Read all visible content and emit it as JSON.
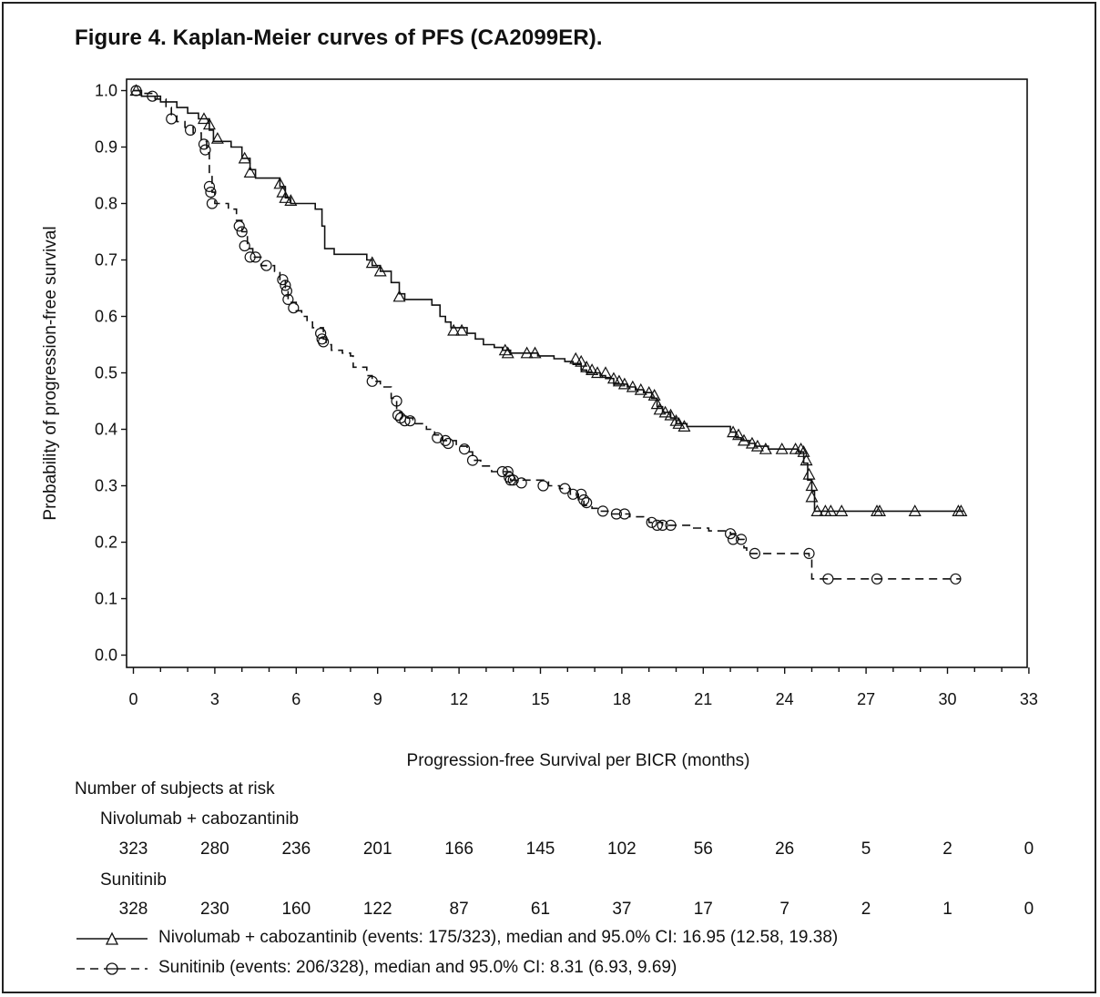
{
  "chart_data": {
    "type": "line",
    "title": "Figure 4. Kaplan-Meier curves of PFS (CA2099ER).",
    "xlabel": "Progression-free Survival per BICR (months)",
    "ylabel": "Probability of progression-free survival",
    "xlim": [
      0,
      33
    ],
    "ylim": [
      0,
      1
    ],
    "xticks": [
      0,
      3,
      6,
      9,
      12,
      15,
      18,
      21,
      24,
      27,
      30,
      33
    ],
    "yticks": [
      "0.0",
      "0.1",
      "0.2",
      "0.3",
      "0.4",
      "0.5",
      "0.6",
      "0.7",
      "0.8",
      "0.9",
      "1.0"
    ],
    "series": [
      {
        "name": "Nivolumab + cabozantinib",
        "style": "solid",
        "marker": "triangle",
        "steps": [
          [
            0,
            1.0
          ],
          [
            0.3,
            0.99
          ],
          [
            1.0,
            0.98
          ],
          [
            1.6,
            0.97
          ],
          [
            2.0,
            0.96
          ],
          [
            2.4,
            0.95
          ],
          [
            2.8,
            0.93
          ],
          [
            2.95,
            0.91
          ],
          [
            3.6,
            0.9
          ],
          [
            4.0,
            0.88
          ],
          [
            4.3,
            0.86
          ],
          [
            4.5,
            0.845
          ],
          [
            5.4,
            0.83
          ],
          [
            5.6,
            0.81
          ],
          [
            5.8,
            0.8
          ],
          [
            6.7,
            0.79
          ],
          [
            6.95,
            0.76
          ],
          [
            7.05,
            0.72
          ],
          [
            7.4,
            0.71
          ],
          [
            8.6,
            0.7
          ],
          [
            8.8,
            0.69
          ],
          [
            9.1,
            0.68
          ],
          [
            9.5,
            0.66
          ],
          [
            9.8,
            0.64
          ],
          [
            10.0,
            0.63
          ],
          [
            10.6,
            0.63
          ],
          [
            11.0,
            0.62
          ],
          [
            11.3,
            0.6
          ],
          [
            11.5,
            0.59
          ],
          [
            11.7,
            0.58
          ],
          [
            12.3,
            0.57
          ],
          [
            12.6,
            0.56
          ],
          [
            12.9,
            0.55
          ],
          [
            13.3,
            0.545
          ],
          [
            13.6,
            0.54
          ],
          [
            13.9,
            0.535
          ],
          [
            14.9,
            0.53
          ],
          [
            15.5,
            0.525
          ],
          [
            15.9,
            0.52
          ],
          [
            16.2,
            0.515
          ],
          [
            16.5,
            0.505
          ],
          [
            16.7,
            0.5
          ],
          [
            17.2,
            0.495
          ],
          [
            17.4,
            0.49
          ],
          [
            17.7,
            0.48
          ],
          [
            18.2,
            0.475
          ],
          [
            18.5,
            0.47
          ],
          [
            18.8,
            0.465
          ],
          [
            19.1,
            0.455
          ],
          [
            19.3,
            0.44
          ],
          [
            19.5,
            0.43
          ],
          [
            19.8,
            0.42
          ],
          [
            20.0,
            0.41
          ],
          [
            20.4,
            0.405
          ],
          [
            22.0,
            0.395
          ],
          [
            22.2,
            0.385
          ],
          [
            22.4,
            0.38
          ],
          [
            22.7,
            0.375
          ],
          [
            22.9,
            0.37
          ],
          [
            23.4,
            0.365
          ],
          [
            24.5,
            0.36
          ],
          [
            24.7,
            0.34
          ],
          [
            24.85,
            0.31
          ],
          [
            25.0,
            0.29
          ],
          [
            25.1,
            0.255
          ],
          [
            30.6,
            0.255
          ]
        ],
        "censored": [
          [
            0.1,
            1.0
          ],
          [
            2.6,
            0.95
          ],
          [
            2.8,
            0.94
          ],
          [
            3.1,
            0.915
          ],
          [
            4.1,
            0.88
          ],
          [
            4.3,
            0.855
          ],
          [
            5.4,
            0.835
          ],
          [
            5.5,
            0.82
          ],
          [
            5.6,
            0.81
          ],
          [
            5.8,
            0.805
          ],
          [
            8.8,
            0.695
          ],
          [
            9.1,
            0.68
          ],
          [
            9.8,
            0.635
          ],
          [
            11.8,
            0.575
          ],
          [
            12.1,
            0.575
          ],
          [
            13.7,
            0.54
          ],
          [
            13.8,
            0.535
          ],
          [
            14.5,
            0.535
          ],
          [
            14.8,
            0.535
          ],
          [
            16.3,
            0.525
          ],
          [
            16.5,
            0.52
          ],
          [
            16.7,
            0.51
          ],
          [
            16.9,
            0.505
          ],
          [
            17.1,
            0.5
          ],
          [
            17.4,
            0.5
          ],
          [
            17.7,
            0.49
          ],
          [
            17.9,
            0.485
          ],
          [
            18.1,
            0.48
          ],
          [
            18.4,
            0.475
          ],
          [
            18.7,
            0.47
          ],
          [
            19.0,
            0.465
          ],
          [
            19.2,
            0.46
          ],
          [
            19.3,
            0.445
          ],
          [
            19.4,
            0.435
          ],
          [
            19.6,
            0.43
          ],
          [
            19.8,
            0.425
          ],
          [
            20.0,
            0.415
          ],
          [
            20.1,
            0.41
          ],
          [
            20.3,
            0.405
          ],
          [
            22.1,
            0.395
          ],
          [
            22.3,
            0.39
          ],
          [
            22.5,
            0.38
          ],
          [
            22.8,
            0.375
          ],
          [
            23.0,
            0.37
          ],
          [
            23.3,
            0.365
          ],
          [
            23.9,
            0.365
          ],
          [
            24.4,
            0.365
          ],
          [
            24.6,
            0.365
          ],
          [
            24.7,
            0.36
          ],
          [
            24.8,
            0.345
          ],
          [
            24.9,
            0.32
          ],
          [
            25.0,
            0.3
          ],
          [
            25.0,
            0.28
          ],
          [
            25.2,
            0.255
          ],
          [
            25.5,
            0.255
          ],
          [
            25.7,
            0.255
          ],
          [
            26.1,
            0.255
          ],
          [
            27.4,
            0.255
          ],
          [
            27.5,
            0.255
          ],
          [
            28.8,
            0.255
          ],
          [
            30.4,
            0.255
          ],
          [
            30.5,
            0.255
          ]
        ]
      },
      {
        "name": "Sunitinib",
        "style": "dashed",
        "marker": "circle",
        "steps": [
          [
            0,
            1.0
          ],
          [
            0.4,
            0.995
          ],
          [
            0.8,
            0.985
          ],
          [
            1.2,
            0.97
          ],
          [
            1.4,
            0.955
          ],
          [
            1.6,
            0.945
          ],
          [
            1.9,
            0.935
          ],
          [
            2.2,
            0.925
          ],
          [
            2.5,
            0.91
          ],
          [
            2.7,
            0.89
          ],
          [
            2.8,
            0.85
          ],
          [
            2.9,
            0.82
          ],
          [
            3.0,
            0.8
          ],
          [
            3.5,
            0.79
          ],
          [
            3.8,
            0.77
          ],
          [
            4.0,
            0.75
          ],
          [
            4.2,
            0.72
          ],
          [
            4.4,
            0.705
          ],
          [
            4.7,
            0.69
          ],
          [
            5.2,
            0.68
          ],
          [
            5.4,
            0.665
          ],
          [
            5.6,
            0.645
          ],
          [
            5.7,
            0.625
          ],
          [
            6.0,
            0.61
          ],
          [
            6.2,
            0.6
          ],
          [
            6.4,
            0.59
          ],
          [
            6.6,
            0.58
          ],
          [
            7.0,
            0.56
          ],
          [
            7.1,
            0.55
          ],
          [
            7.3,
            0.54
          ],
          [
            7.7,
            0.535
          ],
          [
            8.0,
            0.53
          ],
          [
            8.1,
            0.51
          ],
          [
            8.6,
            0.495
          ],
          [
            8.8,
            0.485
          ],
          [
            9.1,
            0.475
          ],
          [
            9.5,
            0.455
          ],
          [
            9.7,
            0.43
          ],
          [
            9.9,
            0.42
          ],
          [
            10.3,
            0.41
          ],
          [
            10.8,
            0.4
          ],
          [
            11.1,
            0.39
          ],
          [
            11.4,
            0.38
          ],
          [
            11.9,
            0.37
          ],
          [
            12.3,
            0.36
          ],
          [
            12.5,
            0.345
          ],
          [
            12.8,
            0.335
          ],
          [
            13.2,
            0.325
          ],
          [
            13.9,
            0.31
          ],
          [
            15.3,
            0.3
          ],
          [
            15.7,
            0.295
          ],
          [
            16.1,
            0.285
          ],
          [
            16.4,
            0.275
          ],
          [
            16.6,
            0.265
          ],
          [
            16.9,
            0.26
          ],
          [
            17.2,
            0.255
          ],
          [
            17.6,
            0.25
          ],
          [
            18.3,
            0.245
          ],
          [
            18.8,
            0.24
          ],
          [
            19.0,
            0.235
          ],
          [
            19.5,
            0.23
          ],
          [
            20.6,
            0.225
          ],
          [
            21.2,
            0.22
          ],
          [
            22.0,
            0.215
          ],
          [
            22.3,
            0.205
          ],
          [
            22.5,
            0.19
          ],
          [
            22.6,
            0.18
          ],
          [
            24.9,
            0.17
          ],
          [
            25.0,
            0.135
          ],
          [
            30.5,
            0.135
          ]
        ],
        "censored": [
          [
            0.1,
            1.0
          ],
          [
            0.7,
            0.99
          ],
          [
            1.4,
            0.95
          ],
          [
            2.1,
            0.93
          ],
          [
            2.6,
            0.905
          ],
          [
            2.65,
            0.895
          ],
          [
            2.8,
            0.83
          ],
          [
            2.85,
            0.82
          ],
          [
            2.9,
            0.8
          ],
          [
            3.9,
            0.76
          ],
          [
            4.0,
            0.75
          ],
          [
            4.1,
            0.725
          ],
          [
            4.3,
            0.705
          ],
          [
            4.5,
            0.705
          ],
          [
            4.9,
            0.69
          ],
          [
            5.5,
            0.665
          ],
          [
            5.6,
            0.655
          ],
          [
            5.65,
            0.645
          ],
          [
            5.7,
            0.63
          ],
          [
            5.9,
            0.615
          ],
          [
            6.9,
            0.57
          ],
          [
            6.95,
            0.56
          ],
          [
            7.0,
            0.555
          ],
          [
            8.8,
            0.485
          ],
          [
            9.7,
            0.45
          ],
          [
            9.75,
            0.425
          ],
          [
            9.85,
            0.42
          ],
          [
            10.0,
            0.415
          ],
          [
            10.2,
            0.415
          ],
          [
            11.2,
            0.385
          ],
          [
            11.5,
            0.38
          ],
          [
            11.6,
            0.375
          ],
          [
            12.2,
            0.365
          ],
          [
            12.5,
            0.345
          ],
          [
            13.6,
            0.325
          ],
          [
            13.8,
            0.325
          ],
          [
            13.85,
            0.315
          ],
          [
            13.9,
            0.31
          ],
          [
            14.0,
            0.31
          ],
          [
            14.3,
            0.305
          ],
          [
            15.1,
            0.3
          ],
          [
            15.9,
            0.295
          ],
          [
            16.2,
            0.285
          ],
          [
            16.5,
            0.285
          ],
          [
            16.6,
            0.275
          ],
          [
            16.7,
            0.27
          ],
          [
            17.3,
            0.255
          ],
          [
            17.8,
            0.25
          ],
          [
            18.1,
            0.25
          ],
          [
            19.1,
            0.235
          ],
          [
            19.3,
            0.23
          ],
          [
            19.5,
            0.23
          ],
          [
            19.8,
            0.23
          ],
          [
            22.0,
            0.215
          ],
          [
            22.1,
            0.205
          ],
          [
            22.4,
            0.205
          ],
          [
            22.9,
            0.18
          ],
          [
            24.9,
            0.18
          ],
          [
            25.6,
            0.135
          ],
          [
            27.4,
            0.135
          ],
          [
            30.3,
            0.135
          ]
        ]
      }
    ],
    "risk_table": {
      "heading": "Number of subjects at risk",
      "groups": [
        {
          "name": "Nivolumab + cabozantinib",
          "counts": [
            "323",
            "280",
            "236",
            "201",
            "166",
            "145",
            "102",
            "56",
            "26",
            "5",
            "2",
            "0"
          ]
        },
        {
          "name": "Sunitinib",
          "counts": [
            "328",
            "230",
            "160",
            "122",
            "87",
            "61",
            "37",
            "17",
            "7",
            "2",
            "1",
            "0"
          ]
        }
      ]
    },
    "legend": [
      {
        "text": "Nivolumab + cabozantinib (events: 175/323), median and 95.0% CI: 16.95 (12.58, 19.38)"
      },
      {
        "text": "Sunitinib (events: 206/328), median and 95.0% CI: 8.31 (6.93, 9.69)"
      }
    ]
  }
}
